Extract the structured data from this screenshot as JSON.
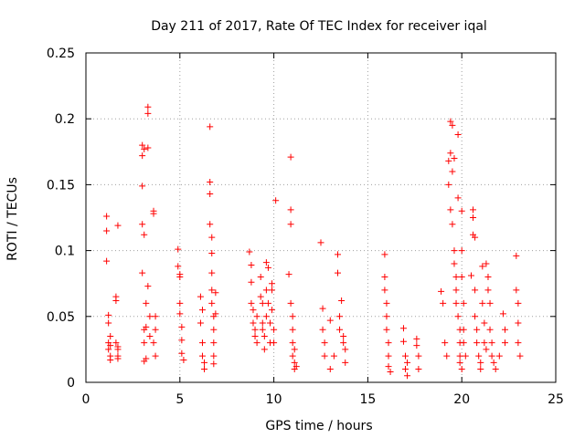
{
  "chart_data": {
    "type": "scatter",
    "title": "Day 211 of 2017, Rate Of TEC Index for receiver iqal",
    "xlabel": "GPS time / hours",
    "ylabel": "ROTI / TECUs",
    "xlim": [
      0,
      25
    ],
    "ylim": [
      0,
      0.25
    ],
    "xticks": [
      0,
      5,
      10,
      15,
      20,
      25
    ],
    "xtick_labels": [
      "0",
      "5",
      "10",
      "15",
      "20",
      "25"
    ],
    "yticks": [
      0,
      0.05,
      0.1,
      0.15,
      0.2,
      0.25
    ],
    "ytick_labels": [
      "0",
      "0.05",
      "0.1",
      "0.15",
      "0.2",
      "0.25"
    ],
    "grid": true,
    "marker": "plus",
    "color": "#ff0000",
    "series": [
      {
        "name": "ROTI",
        "x": [
          1.1,
          1.1,
          1.1,
          1.2,
          1.2,
          1.2,
          1.2,
          1.3,
          1.3,
          1.3,
          1.3,
          1.6,
          1.6,
          1.6,
          1.7,
          1.7,
          1.7,
          1.7,
          1.7,
          3.0,
          3.0,
          3.0,
          3.0,
          3.0,
          3.1,
          3.1,
          3.1,
          3.1,
          3.1,
          3.2,
          3.2,
          3.2,
          3.3,
          3.3,
          3.3,
          3.3,
          3.4,
          3.4,
          3.6,
          3.6,
          3.6,
          3.7,
          3.7,
          3.7,
          4.9,
          4.9,
          5.0,
          5.0,
          5.0,
          5.0,
          5.1,
          5.1,
          5.1,
          5.2,
          6.1,
          6.1,
          6.2,
          6.2,
          6.2,
          6.3,
          6.3,
          6.6,
          6.6,
          6.6,
          6.6,
          6.7,
          6.7,
          6.7,
          6.7,
          6.7,
          6.8,
          6.8,
          6.8,
          6.8,
          6.8,
          6.9,
          6.9,
          8.7,
          8.8,
          8.8,
          8.8,
          8.9,
          8.9,
          9.0,
          9.0,
          9.1,
          9.1,
          9.3,
          9.3,
          9.4,
          9.4,
          9.4,
          9.5,
          9.5,
          9.6,
          9.6,
          9.6,
          9.7,
          9.7,
          9.8,
          9.8,
          9.9,
          9.9,
          9.9,
          10.0,
          10.0,
          10.1,
          10.8,
          10.9,
          10.9,
          10.9,
          10.9,
          11.0,
          11.0,
          11.0,
          11.0,
          11.1,
          11.1,
          11.1,
          11.2,
          12.5,
          12.6,
          12.6,
          12.7,
          12.7,
          13.0,
          13.0,
          13.2,
          13.4,
          13.4,
          13.5,
          13.5,
          13.6,
          13.7,
          13.7,
          13.8,
          13.8,
          15.9,
          15.9,
          15.9,
          16.0,
          16.0,
          16.0,
          16.1,
          16.1,
          16.1,
          16.2,
          16.9,
          16.9,
          17.0,
          17.0,
          17.1,
          17.1,
          17.6,
          17.6,
          17.7,
          17.7,
          18.9,
          19.0,
          19.1,
          19.2,
          19.3,
          19.3,
          19.4,
          19.4,
          19.4,
          19.5,
          19.5,
          19.5,
          19.6,
          19.6,
          19.6,
          19.7,
          19.7,
          19.7,
          19.8,
          19.8,
          19.8,
          19.9,
          19.9,
          19.9,
          19.9,
          20.0,
          20.0,
          20.0,
          20.0,
          20.1,
          20.1,
          20.1,
          20.2,
          20.5,
          20.6,
          20.6,
          20.6,
          20.7,
          20.7,
          20.7,
          20.8,
          20.8,
          20.9,
          21.0,
          21.0,
          21.1,
          21.1,
          21.2,
          21.2,
          21.3,
          21.3,
          21.4,
          21.4,
          21.5,
          21.5,
          21.6,
          21.6,
          21.7,
          21.8,
          22.0,
          22.2,
          22.3,
          22.3,
          22.9,
          22.9,
          23.0,
          23.0,
          23.0,
          23.1
        ],
        "y": [
          0.126,
          0.115,
          0.092,
          0.051,
          0.045,
          0.03,
          0.025,
          0.02,
          0.035,
          0.017,
          0.028,
          0.062,
          0.065,
          0.03,
          0.025,
          0.02,
          0.027,
          0.119,
          0.018,
          0.18,
          0.172,
          0.149,
          0.12,
          0.083,
          0.112,
          0.177,
          0.04,
          0.03,
          0.016,
          0.042,
          0.06,
          0.018,
          0.209,
          0.204,
          0.178,
          0.073,
          0.05,
          0.035,
          0.03,
          0.128,
          0.13,
          0.04,
          0.02,
          0.05,
          0.101,
          0.088,
          0.082,
          0.08,
          0.06,
          0.052,
          0.042,
          0.032,
          0.022,
          0.017,
          0.065,
          0.045,
          0.055,
          0.03,
          0.02,
          0.015,
          0.01,
          0.194,
          0.152,
          0.143,
          0.12,
          0.11,
          0.098,
          0.083,
          0.07,
          0.06,
          0.05,
          0.04,
          0.03,
          0.02,
          0.014,
          0.068,
          0.052,
          0.099,
          0.089,
          0.076,
          0.06,
          0.055,
          0.045,
          0.04,
          0.035,
          0.05,
          0.03,
          0.08,
          0.065,
          0.06,
          0.045,
          0.04,
          0.035,
          0.025,
          0.091,
          0.07,
          0.05,
          0.087,
          0.06,
          0.045,
          0.03,
          0.075,
          0.07,
          0.055,
          0.04,
          0.03,
          0.138,
          0.082,
          0.171,
          0.131,
          0.12,
          0.06,
          0.05,
          0.04,
          0.03,
          0.02,
          0.025,
          0.015,
          0.01,
          0.012,
          0.106,
          0.056,
          0.04,
          0.03,
          0.02,
          0.047,
          0.01,
          0.02,
          0.097,
          0.083,
          0.05,
          0.04,
          0.062,
          0.035,
          0.03,
          0.025,
          0.015,
          0.097,
          0.08,
          0.07,
          0.06,
          0.05,
          0.04,
          0.03,
          0.02,
          0.012,
          0.008,
          0.041,
          0.031,
          0.02,
          0.01,
          0.015,
          0.005,
          0.033,
          0.028,
          0.02,
          0.01,
          0.069,
          0.06,
          0.03,
          0.02,
          0.168,
          0.15,
          0.174,
          0.131,
          0.198,
          0.195,
          0.16,
          0.12,
          0.17,
          0.1,
          0.09,
          0.08,
          0.07,
          0.06,
          0.188,
          0.14,
          0.05,
          0.04,
          0.03,
          0.02,
          0.015,
          0.01,
          0.13,
          0.1,
          0.08,
          0.06,
          0.04,
          0.03,
          0.02,
          0.081,
          0.131,
          0.125,
          0.112,
          0.11,
          0.07,
          0.05,
          0.04,
          0.03,
          0.02,
          0.015,
          0.01,
          0.088,
          0.06,
          0.045,
          0.03,
          0.025,
          0.09,
          0.08,
          0.07,
          0.06,
          0.04,
          0.03,
          0.02,
          0.015,
          0.01,
          0.02,
          0.052,
          0.04,
          0.03,
          0.096,
          0.07,
          0.06,
          0.045,
          0.03,
          0.02
        ]
      }
    ]
  }
}
